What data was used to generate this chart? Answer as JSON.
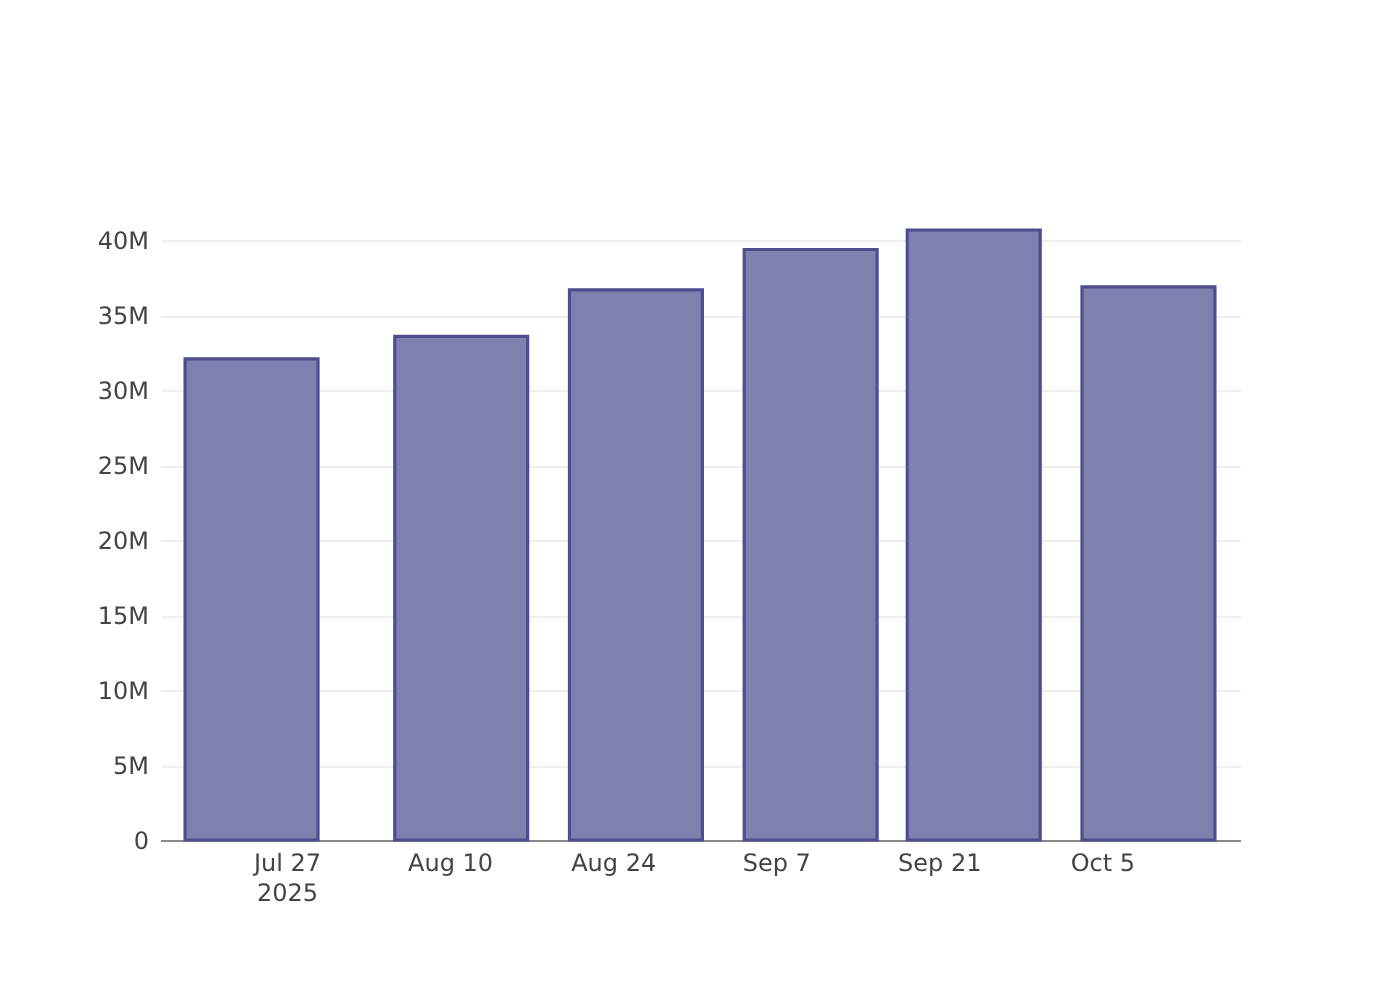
{
  "chart_data": {
    "type": "bar",
    "x": [
      "2025-07-24",
      "2025-08-11",
      "2025-08-26",
      "2025-09-10",
      "2025-09-24",
      "2025-10-09"
    ],
    "values": [
      32100000,
      33600000,
      36700000,
      39400000,
      40700000,
      36900000
    ],
    "color": "#7f7fb0",
    "xlim": [
      "2025-07-17",
      "2025-10-16"
    ],
    "xticks": [
      {
        "value": "2025-07-27",
        "label": "Jul 27\n2025"
      },
      {
        "value": "2025-08-10",
        "label": "Aug 10"
      },
      {
        "value": "2025-08-24",
        "label": "Aug 24"
      },
      {
        "value": "2025-09-07",
        "label": "Sep 7"
      },
      {
        "value": "2025-09-21",
        "label": "Sep 21"
      },
      {
        "value": "2025-10-05",
        "label": "Oct 5"
      }
    ],
    "ylim": [
      0,
      40700000
    ],
    "yticks": [
      0,
      {
        "value": 5000000,
        "label": "5M"
      },
      {
        "value": 10000000,
        "label": "10M"
      },
      {
        "value": 15000000,
        "label": "15M"
      },
      {
        "value": 20000000,
        "label": "20M"
      },
      {
        "value": 25000000,
        "label": "25M"
      },
      {
        "value": 30000000,
        "label": "30M"
      },
      {
        "value": 35000000,
        "label": "35M"
      },
      {
        "value": 40000000,
        "label": "40M"
      }
    ],
    "grid": "y"
  }
}
